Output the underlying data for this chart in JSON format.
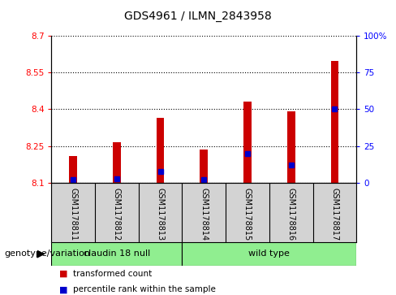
{
  "title": "GDS4961 / ILMN_2843958",
  "samples": [
    "GSM1178811",
    "GSM1178812",
    "GSM1178813",
    "GSM1178814",
    "GSM1178815",
    "GSM1178816",
    "GSM1178817"
  ],
  "transformed_counts": [
    8.21,
    8.265,
    8.365,
    8.235,
    8.43,
    8.39,
    8.595
  ],
  "percentile_ranks": [
    2,
    3,
    8,
    2,
    20,
    12,
    50
  ],
  "base_value": 8.1,
  "ylim_left": [
    8.1,
    8.7
  ],
  "ylim_right": [
    0,
    100
  ],
  "right_ticks": [
    0,
    25,
    50,
    75,
    100
  ],
  "right_tick_labels": [
    "0",
    "25",
    "50",
    "75",
    "100%"
  ],
  "left_ticks": [
    8.1,
    8.25,
    8.4,
    8.55,
    8.7
  ],
  "bar_color_red": "#CC0000",
  "bar_color_blue": "#0000CC",
  "bar_width": 0.18,
  "grid_color": "black",
  "genotype_label": "genotype/variation",
  "legend_items": [
    {
      "color": "#CC0000",
      "label": "transformed count"
    },
    {
      "color": "#0000CC",
      "label": "percentile rank within the sample"
    }
  ],
  "background_color": "#ffffff",
  "sample_box_color": "#d3d3d3",
  "green_color": "#90EE90",
  "claudin_range": [
    0,
    3
  ],
  "wildtype_range": [
    3,
    7
  ],
  "claudin_label": "claudin 18 null",
  "wildtype_label": "wild type"
}
